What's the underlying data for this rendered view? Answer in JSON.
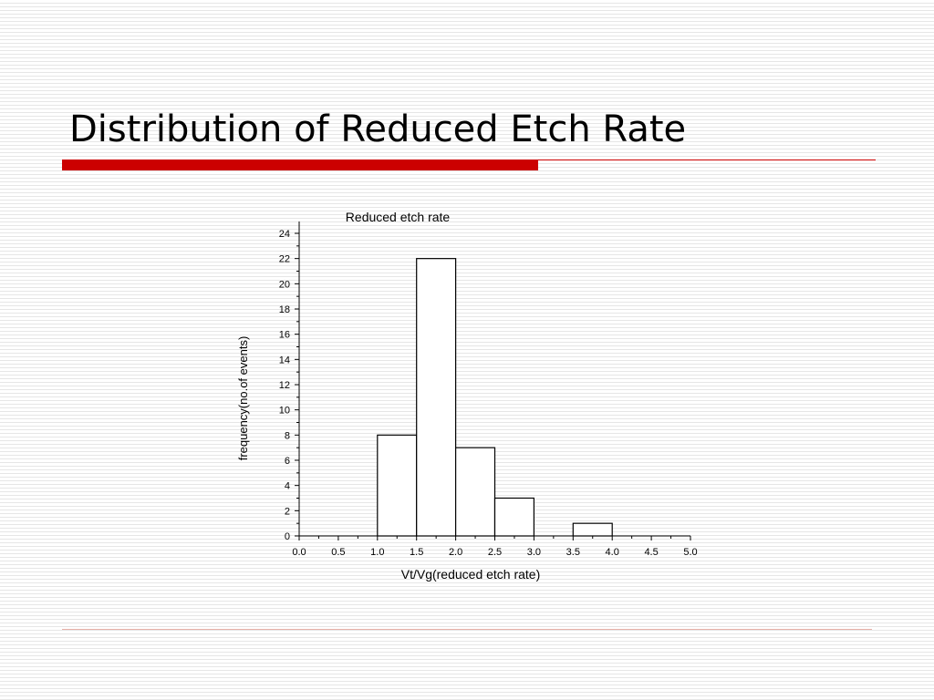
{
  "slide": {
    "title": "Distribution of Reduced Etch Rate",
    "accent_color": "#cc0000"
  },
  "chart_data": {
    "type": "bar",
    "title": "Reduced etch rate",
    "xlabel": "Vt/Vg(reduced etch rate)",
    "ylabel": "frequency(no.of events)",
    "xlim": [
      0.0,
      5.0
    ],
    "ylim": [
      0,
      24
    ],
    "x_ticks": [
      "0.0",
      "0.5",
      "1.0",
      "1.5",
      "2.0",
      "2.5",
      "3.0",
      "3.5",
      "4.0",
      "4.5",
      "5.0"
    ],
    "y_ticks": [
      "0",
      "2",
      "4",
      "6",
      "8",
      "10",
      "12",
      "14",
      "16",
      "18",
      "20",
      "22",
      "24"
    ],
    "bin_width": 0.5,
    "bins": [
      {
        "start": 0.0,
        "end": 0.5,
        "count": 0
      },
      {
        "start": 0.5,
        "end": 1.0,
        "count": 0
      },
      {
        "start": 1.0,
        "end": 1.5,
        "count": 8
      },
      {
        "start": 1.5,
        "end": 2.0,
        "count": 22
      },
      {
        "start": 2.0,
        "end": 2.5,
        "count": 7
      },
      {
        "start": 2.5,
        "end": 3.0,
        "count": 3
      },
      {
        "start": 3.0,
        "end": 3.5,
        "count": 0
      },
      {
        "start": 3.5,
        "end": 4.0,
        "count": 1
      },
      {
        "start": 4.0,
        "end": 4.5,
        "count": 0
      },
      {
        "start": 4.5,
        "end": 5.0,
        "count": 0
      }
    ],
    "grid": false,
    "legend": "none",
    "bar_fill": "#ffffff",
    "bar_stroke": "#000000"
  }
}
